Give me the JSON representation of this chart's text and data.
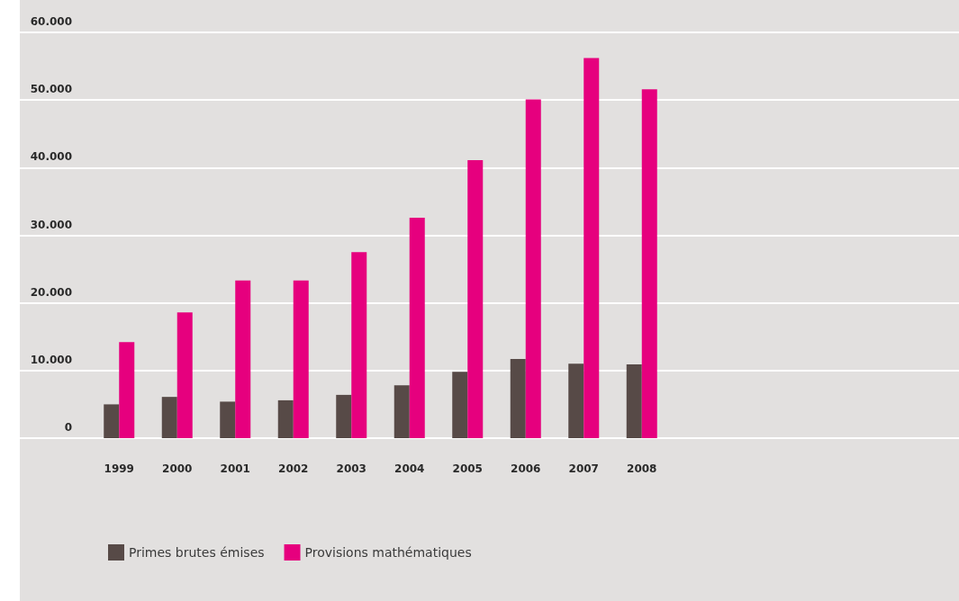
{
  "chart_data": {
    "type": "bar",
    "categories": [
      "1999",
      "2000",
      "2001",
      "2002",
      "2003",
      "2004",
      "2005",
      "2006",
      "2007",
      "2008"
    ],
    "series": [
      {
        "name": "Primes brutes émises",
        "color": "#574a47",
        "values": [
          5000,
          6100,
          5400,
          5600,
          6400,
          7800,
          9800,
          11700,
          11000,
          10900
        ]
      },
      {
        "name": "Provisions mathématiques",
        "color": "#e6007e",
        "values": [
          14200,
          18600,
          23300,
          23300,
          27500,
          32600,
          41100,
          50100,
          56200,
          51600
        ]
      }
    ],
    "ylim": [
      0,
      60000
    ],
    "yticks": [
      {
        "value": 0,
        "label": "0"
      },
      {
        "value": 10000,
        "label": "10.000"
      },
      {
        "value": 20000,
        "label": "20.000"
      },
      {
        "value": 30000,
        "label": "30.000"
      },
      {
        "value": 40000,
        "label": "40.000"
      },
      {
        "value": 50000,
        "label": "50.000"
      },
      {
        "value": 60000,
        "label": "60.000"
      }
    ],
    "grid": "y",
    "legend": "bottom left"
  }
}
